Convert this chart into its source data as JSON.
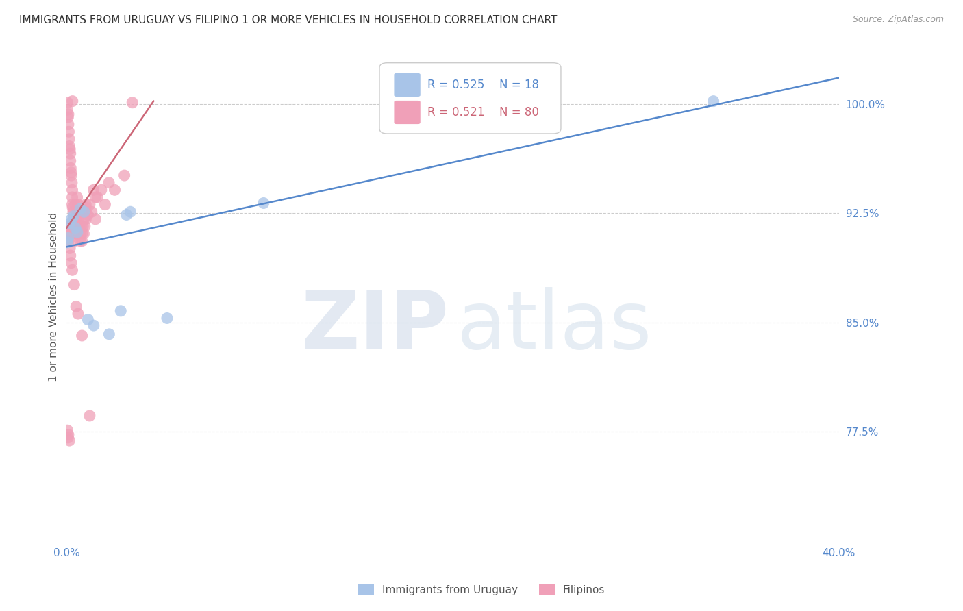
{
  "title": "IMMIGRANTS FROM URUGUAY VS FILIPINO 1 OR MORE VEHICLES IN HOUSEHOLD CORRELATION CHART",
  "source": "Source: ZipAtlas.com",
  "ylabel": "1 or more Vehicles in Household",
  "watermark_zip": "ZIP",
  "watermark_atlas": "atlas",
  "xlim": [
    0.0,
    40.0
  ],
  "ylim": [
    70.0,
    103.5
  ],
  "yticks": [
    77.5,
    85.0,
    92.5,
    100.0
  ],
  "xtick_positions": [
    0.0,
    5.0,
    10.0,
    15.0,
    20.0,
    25.0,
    30.0,
    35.0,
    40.0
  ],
  "xtick_labels": [
    "0.0%",
    "",
    "",
    "",
    "",
    "",
    "",
    "",
    "40.0%"
  ],
  "blue_R": 0.525,
  "blue_N": 18,
  "pink_R": 0.521,
  "pink_N": 80,
  "blue_color": "#a8c4e8",
  "pink_color": "#f0a0b8",
  "blue_line_color": "#5588cc",
  "pink_line_color": "#cc6677",
  "legend_label_blue": "Immigrants from Uruguay",
  "legend_label_pink": "Filipinos",
  "blue_scatter": [
    [
      0.15,
      91.8
    ],
    [
      0.25,
      92.1
    ],
    [
      0.35,
      92.3
    ],
    [
      0.45,
      91.5
    ],
    [
      0.55,
      91.2
    ],
    [
      0.7,
      92.8
    ],
    [
      0.9,
      92.6
    ],
    [
      1.1,
      85.2
    ],
    [
      1.4,
      84.8
    ],
    [
      2.2,
      84.2
    ],
    [
      2.8,
      85.8
    ],
    [
      3.1,
      92.4
    ],
    [
      3.3,
      92.6
    ],
    [
      5.2,
      85.3
    ],
    [
      0.08,
      90.8
    ],
    [
      10.2,
      93.2
    ],
    [
      33.5,
      100.2
    ],
    [
      0.05,
      90.5
    ]
  ],
  "pink_scatter": [
    [
      0.04,
      100.1
    ],
    [
      0.04,
      99.6
    ],
    [
      0.07,
      99.1
    ],
    [
      0.09,
      99.3
    ],
    [
      0.09,
      98.6
    ],
    [
      0.11,
      98.1
    ],
    [
      0.13,
      97.6
    ],
    [
      0.14,
      97.1
    ],
    [
      0.17,
      96.9
    ],
    [
      0.19,
      96.6
    ],
    [
      0.19,
      96.1
    ],
    [
      0.21,
      95.6
    ],
    [
      0.24,
      95.1
    ],
    [
      0.24,
      95.3
    ],
    [
      0.27,
      94.6
    ],
    [
      0.29,
      94.1
    ],
    [
      0.29,
      93.6
    ],
    [
      0.29,
      93.1
    ],
    [
      0.31,
      92.9
    ],
    [
      0.34,
      92.6
    ],
    [
      0.34,
      92.1
    ],
    [
      0.37,
      91.9
    ],
    [
      0.39,
      91.6
    ],
    [
      0.39,
      91.1
    ],
    [
      0.41,
      90.6
    ],
    [
      0.44,
      93.1
    ],
    [
      0.49,
      92.6
    ],
    [
      0.49,
      92.1
    ],
    [
      0.49,
      91.6
    ],
    [
      0.49,
      91.1
    ],
    [
      0.54,
      93.6
    ],
    [
      0.59,
      93.1
    ],
    [
      0.59,
      92.6
    ],
    [
      0.61,
      92.1
    ],
    [
      0.64,
      91.6
    ],
    [
      0.69,
      91.1
    ],
    [
      0.69,
      90.6
    ],
    [
      0.74,
      91.6
    ],
    [
      0.79,
      91.1
    ],
    [
      0.79,
      90.6
    ],
    [
      0.84,
      91.6
    ],
    [
      0.89,
      91.1
    ],
    [
      0.89,
      92.1
    ],
    [
      0.94,
      91.6
    ],
    [
      0.99,
      93.1
    ],
    [
      0.99,
      92.6
    ],
    [
      0.99,
      92.1
    ],
    [
      0.99,
      92.9
    ],
    [
      1.09,
      92.4
    ],
    [
      1.19,
      93.1
    ],
    [
      1.29,
      92.6
    ],
    [
      1.39,
      94.1
    ],
    [
      1.49,
      93.6
    ],
    [
      1.49,
      92.1
    ],
    [
      1.59,
      93.6
    ],
    [
      1.79,
      94.1
    ],
    [
      1.99,
      93.1
    ],
    [
      2.19,
      94.6
    ],
    [
      2.49,
      94.1
    ],
    [
      2.99,
      95.1
    ],
    [
      0.04,
      91.6
    ],
    [
      0.07,
      91.1
    ],
    [
      0.09,
      90.6
    ],
    [
      0.11,
      91.1
    ],
    [
      0.14,
      91.6
    ],
    [
      0.17,
      90.1
    ],
    [
      0.19,
      89.6
    ],
    [
      0.24,
      89.1
    ],
    [
      0.29,
      88.6
    ],
    [
      0.39,
      87.6
    ],
    [
      0.49,
      86.1
    ],
    [
      0.59,
      85.6
    ],
    [
      0.79,
      84.1
    ],
    [
      0.04,
      77.6
    ],
    [
      0.07,
      77.1
    ],
    [
      1.19,
      78.6
    ],
    [
      0.09,
      77.3
    ],
    [
      0.14,
      76.9
    ],
    [
      3.4,
      100.1
    ],
    [
      0.3,
      100.2
    ]
  ],
  "blue_line_x": [
    0.0,
    40.0
  ],
  "blue_line_y": [
    90.2,
    101.8
  ],
  "pink_line_x": [
    0.0,
    4.5
  ],
  "pink_line_y": [
    91.5,
    100.2
  ]
}
